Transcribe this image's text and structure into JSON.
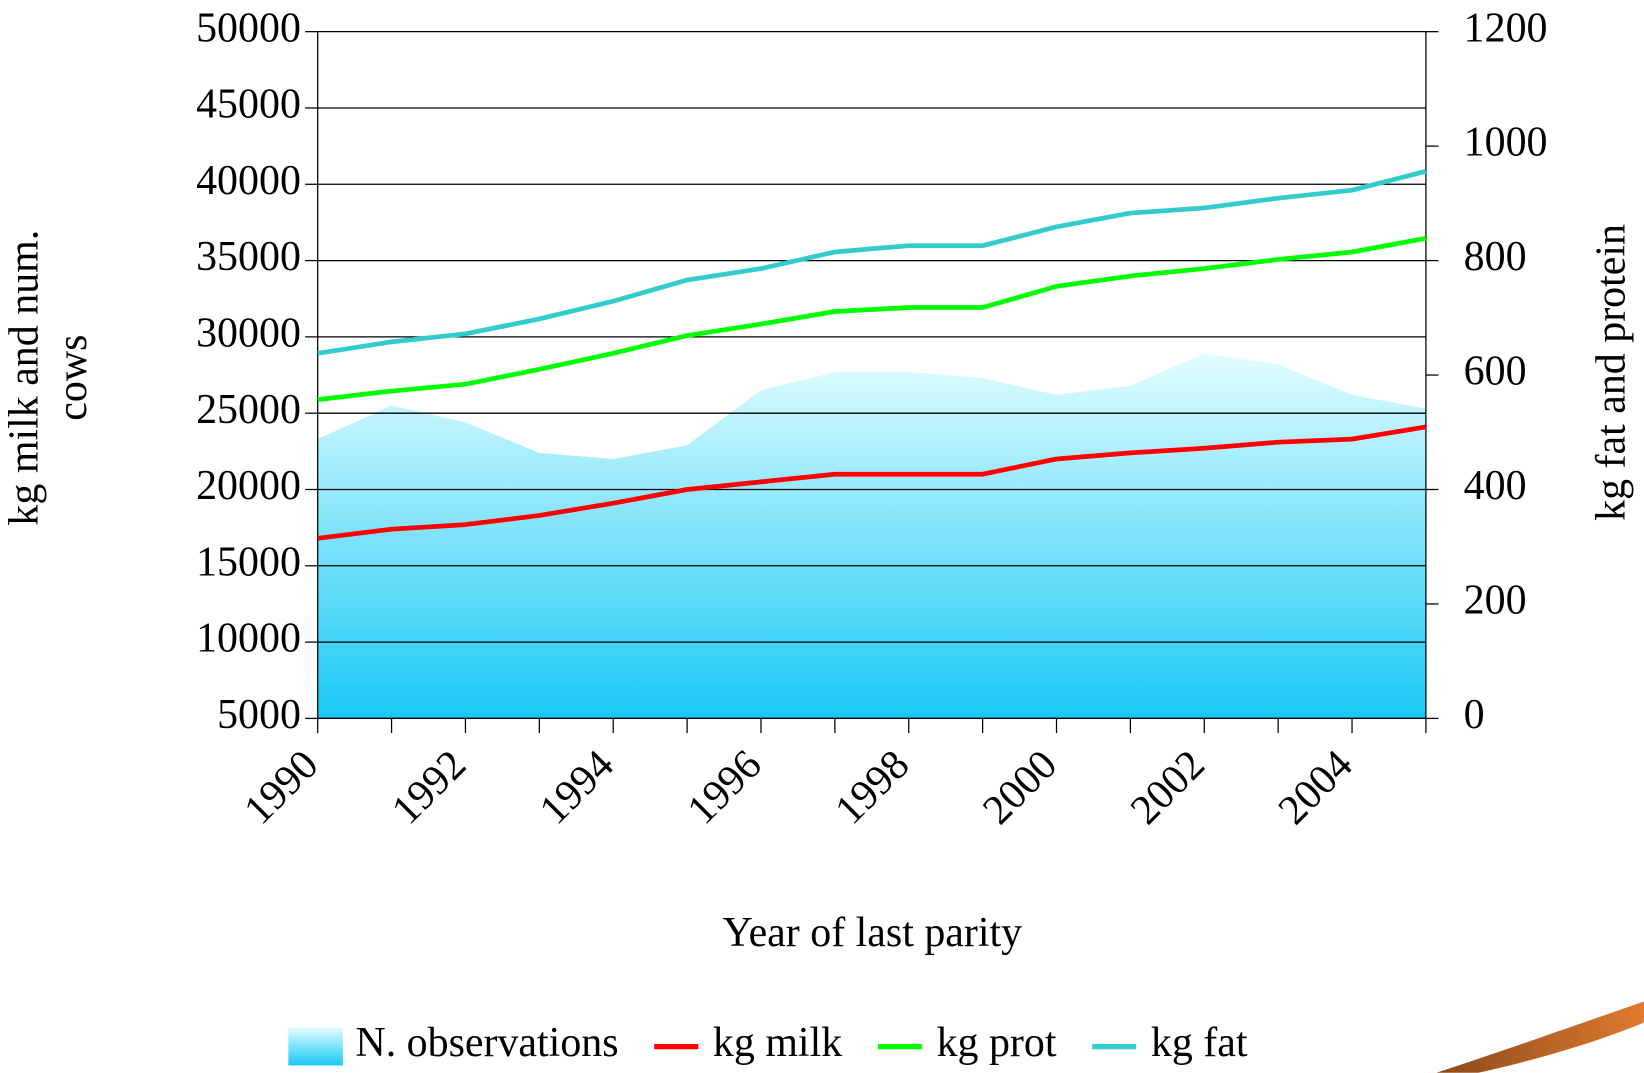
{
  "chart_data": {
    "type": "line",
    "xlabel": "Year of last parity",
    "ylabel": "kg milk and num. cows",
    "y2label": "kg fat and protein",
    "x": [
      1990,
      1991,
      1992,
      1993,
      1994,
      1995,
      1996,
      1997,
      1998,
      1999,
      2000,
      2001,
      2002,
      2003,
      2004,
      2005
    ],
    "xlim": [
      1990,
      2005
    ],
    "xticks": [
      1990,
      1992,
      1994,
      1996,
      1998,
      2000,
      2002,
      2004
    ],
    "ylim": [
      5000,
      50000
    ],
    "yticks": [
      5000,
      10000,
      15000,
      20000,
      25000,
      30000,
      35000,
      40000,
      45000,
      50000
    ],
    "y2lim": [
      0,
      1200
    ],
    "y2ticks": [
      0,
      200,
      400,
      600,
      800,
      1000,
      1200
    ],
    "grid": true,
    "series": [
      {
        "name": "N. observations",
        "type": "area",
        "color": "#19c8f5",
        "values": [
          23300,
          25500,
          24400,
          22400,
          22000,
          22900,
          26500,
          27700,
          27700,
          27300,
          26200,
          26800,
          28900,
          28200,
          26200,
          25300
        ]
      },
      {
        "name": "kg milk",
        "color": "#ff0000",
        "values": [
          16800,
          17400,
          17700,
          18300,
          19100,
          20000,
          20500,
          21000,
          21000,
          21000,
          22000,
          22400,
          22700,
          23100,
          23300,
          24100
        ]
      },
      {
        "name": "kg prot",
        "color": "#00ff00",
        "axis": "y2",
        "values": [
          557,
          572,
          584,
          610,
          638,
          669,
          689,
          711,
          718,
          718,
          755,
          773,
          786,
          802,
          815,
          839
        ]
      },
      {
        "name": "kg fat",
        "color": "#33cccc",
        "axis": "y2",
        "values": [
          638,
          658,
          672,
          698,
          729,
          766,
          786,
          815,
          826,
          826,
          859,
          883,
          892,
          909,
          923,
          956
        ]
      }
    ]
  }
}
